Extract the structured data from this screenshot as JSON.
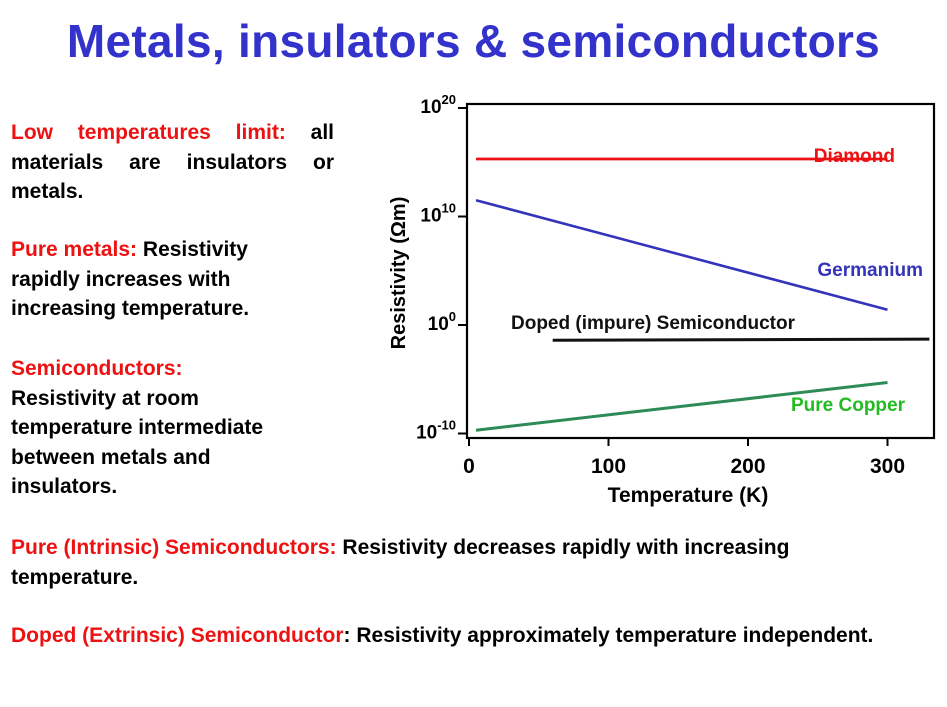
{
  "title": "Metals, insulators & semiconductors",
  "paragraphs": {
    "low_temp": {
      "label": "Low temperatures limit:",
      "text": " all materials are insulators or metals."
    },
    "pure_metals": {
      "label": "Pure metals:",
      "text": " Resistivity rapidly increases with increasing temperature."
    },
    "semiconductors": {
      "label": "Semiconductors:",
      "text": "Resistivity at room temperature intermediate between metals and insulators."
    },
    "intrinsic": {
      "label": "Pure (Intrinsic) Semiconductors:",
      "text": " Resistivity decreases rapidly with increasing temperature."
    },
    "extrinsic": {
      "label": "Doped (Extrinsic) Semiconductor",
      "text": ": Resistivity approximately temperature independent."
    }
  },
  "chart_data": {
    "type": "line",
    "xlabel": "Temperature (K)",
    "ylabel": "Resistivity (Ωm)",
    "x_ticks": [
      0,
      100,
      200,
      300
    ],
    "y_ticks": [
      {
        "base": "10",
        "exp": "20",
        "value": 20
      },
      {
        "base": "10",
        "exp": "10",
        "value": 10
      },
      {
        "base": "10",
        "exp": "0",
        "value": 0
      },
      {
        "base": "10",
        "exp": "-10",
        "value": -10
      }
    ],
    "y_scale": "log",
    "xlim": [
      0,
      330
    ],
    "ylim_log10": [
      -11,
      20
    ],
    "series": [
      {
        "name": "Diamond",
        "color": "#ee1111",
        "x": [
          5,
          300
        ],
        "log10_y": [
          15.3,
          15.3
        ]
      },
      {
        "name": "Germanium",
        "color": "#3333bb",
        "x": [
          5,
          300
        ],
        "log10_y": [
          11.5,
          1.4
        ]
      },
      {
        "name": "Doped (impure) Semiconductor",
        "color": "#111111",
        "x": [
          60,
          330
        ],
        "log10_y": [
          -1.4,
          -1.3
        ]
      },
      {
        "name": "Pure Copper",
        "color": "#2e8b57",
        "x": [
          5,
          300
        ],
        "log10_y": [
          -9.7,
          -5.3
        ]
      }
    ],
    "label_colors": {
      "Diamond": "#ee1111",
      "Germanium": "#3333bb",
      "Doped (impure) Semiconductor": "#111111",
      "Pure Copper": "#22bb22"
    }
  }
}
